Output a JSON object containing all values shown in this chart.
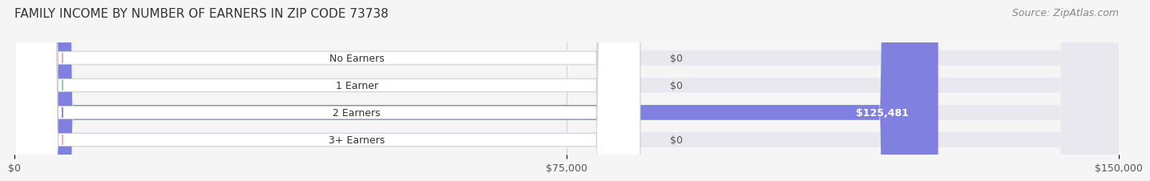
{
  "title": "FAMILY INCOME BY NUMBER OF EARNERS IN ZIP CODE 73738",
  "source": "Source: ZipAtlas.com",
  "categories": [
    "No Earners",
    "1 Earner",
    "2 Earners",
    "3+ Earners"
  ],
  "values": [
    0,
    0,
    125481,
    0
  ],
  "bar_colors": [
    "#c9a8d4",
    "#72ccc6",
    "#8080e0",
    "#f4a0b8"
  ],
  "xlim": [
    0,
    150000
  ],
  "xticks": [
    0,
    75000,
    150000
  ],
  "xtick_labels": [
    "$0",
    "$75,000",
    "$150,000"
  ],
  "bar_value_labels": [
    "$0",
    "$0",
    "$125,481",
    "$0"
  ],
  "background_color": "#f5f5f5",
  "bar_bg_color": "#e8e8ee",
  "title_fontsize": 11,
  "source_fontsize": 9,
  "tick_fontsize": 9,
  "label_fontsize": 9
}
